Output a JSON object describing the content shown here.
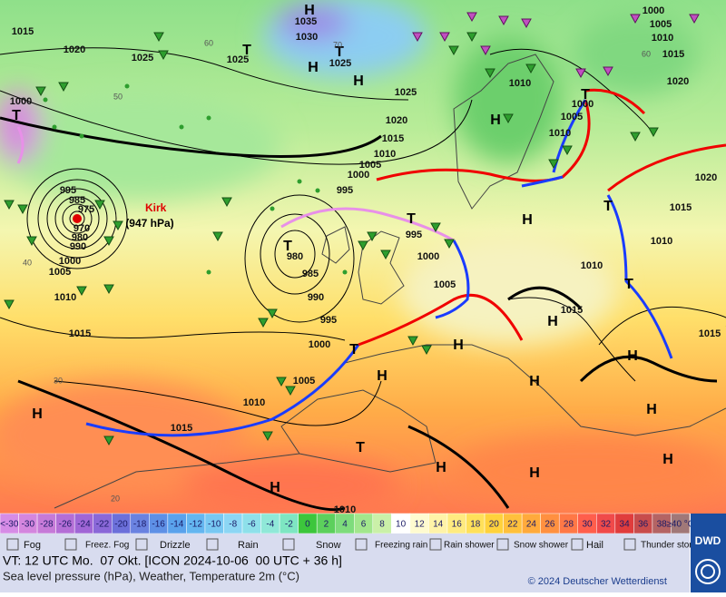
{
  "map": {
    "isobar_labels": [
      "1015",
      "1020",
      "1025",
      "1035",
      "1030",
      "1025",
      "1025",
      "1025",
      "1020",
      "1015",
      "1010",
      "1005",
      "1000",
      "995",
      "1000",
      "995",
      "985",
      "975",
      "970",
      "980",
      "990",
      "1000",
      "1005",
      "1010",
      "1015",
      "980",
      "985",
      "990",
      "995",
      "1000",
      "1005",
      "1010",
      "1015",
      "995",
      "1000",
      "1005",
      "1010",
      "1000",
      "1005",
      "1010",
      "1015",
      "1020",
      "1010",
      "1000",
      "1005",
      "1010",
      "1020",
      "1015",
      "1010",
      "1010",
      "1015",
      "1015"
    ],
    "pressure_systems": [
      "H",
      "H",
      "H",
      "H",
      "H",
      "H",
      "H",
      "H",
      "H",
      "H",
      "H",
      "H",
      "H",
      "H",
      "H",
      "H",
      "T",
      "T",
      "T",
      "T",
      "T",
      "T",
      "T",
      "T",
      "T",
      "T"
    ],
    "grid_labels": [
      "60",
      "50",
      "40",
      "30",
      "20",
      "70",
      "60"
    ],
    "storm_name": "Kirk",
    "storm_pressure": "(947 hPa)"
  },
  "temperature_scale": [
    {
      "label": "<-30",
      "color": "#d68ce6"
    },
    {
      "label": "-30",
      "color": "#d486de"
    },
    {
      "label": "-28",
      "color": "#c67ad8"
    },
    {
      "label": "-26",
      "color": "#b46ed6"
    },
    {
      "label": "-24",
      "color": "#a066d6"
    },
    {
      "label": "-22",
      "color": "#8a68d8"
    },
    {
      "label": "-20",
      "color": "#6c70da"
    },
    {
      "label": "-18",
      "color": "#6a82e0"
    },
    {
      "label": "-16",
      "color": "#5e90e6"
    },
    {
      "label": "-14",
      "color": "#5aa2ec"
    },
    {
      "label": "-12",
      "color": "#64b6f0"
    },
    {
      "label": "-10",
      "color": "#78c8f2"
    },
    {
      "label": "-8",
      "color": "#8cd6f4"
    },
    {
      "label": "-6",
      "color": "#8ee0ea"
    },
    {
      "label": "-4",
      "color": "#90e8d8"
    },
    {
      "label": "-2",
      "color": "#7ee6c2"
    },
    {
      "label": "0",
      "color": "#3cc63c"
    },
    {
      "label": "2",
      "color": "#5cd05c"
    },
    {
      "label": "4",
      "color": "#7edc7c"
    },
    {
      "label": "6",
      "color": "#a2e68c"
    },
    {
      "label": "8",
      "color": "#caf0a8"
    },
    {
      "label": "10",
      "color": "#ffffff"
    },
    {
      "label": "12",
      "color": "#fffbd0"
    },
    {
      "label": "14",
      "color": "#fff3a8"
    },
    {
      "label": "16",
      "color": "#ffeb80"
    },
    {
      "label": "18",
      "color": "#ffe05a"
    },
    {
      "label": "20",
      "color": "#ffd23c"
    },
    {
      "label": "22",
      "color": "#ffc03c"
    },
    {
      "label": "24",
      "color": "#ffaa3c"
    },
    {
      "label": "26",
      "color": "#ff9040"
    },
    {
      "label": "28",
      "color": "#ff7846"
    },
    {
      "label": "30",
      "color": "#ff5e4c"
    },
    {
      "label": "32",
      "color": "#f04a4a"
    },
    {
      "label": "34",
      "color": "#e03c3c"
    },
    {
      "label": "36",
      "color": "#c84c4c"
    },
    {
      "label": "38",
      "color": "#b46464"
    },
    {
      "label": "≥40 °C",
      "color": "#a07878"
    }
  ],
  "weather_legend": [
    "Fog",
    "Freez. Fog",
    "Drizzle",
    "Rain",
    "Snow",
    "Freezing rain",
    "Rain shower",
    "Snow shower",
    "Hail",
    "Thunder storm"
  ],
  "footer": {
    "valid_time": "VT: 12 UTC Mo.  07 Okt. [ICON 2024-10-06  00 UTC + 36 h]",
    "description": "Sea level pressure (hPa), Weather, Temperature 2m (°C)",
    "copyright": "© 2024 Deutscher Wetterdienst",
    "logo": "DWD"
  }
}
